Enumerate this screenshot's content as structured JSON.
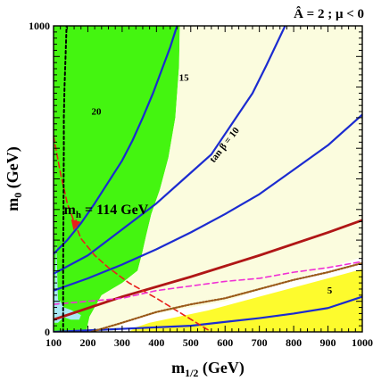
{
  "chart_data": {
    "type": "line",
    "title": "Â = 2 ; μ < 0",
    "xlabel": "m1/2 (GeV)",
    "xlabel_main": "m",
    "xlabel_sub": "1/2",
    "xlabel_unit": " (GeV)",
    "ylabel": "m0 (GeV)",
    "ylabel_main": "m",
    "ylabel_sub": "0",
    "ylabel_unit": " (GeV)",
    "xlim": [
      100,
      1000
    ],
    "ylim": [
      0,
      1000
    ],
    "xticks": [
      100,
      200,
      300,
      400,
      500,
      600,
      700,
      800,
      900,
      1000
    ],
    "yticks_labeled": [
      0,
      1000
    ],
    "yticks_minor": [
      100,
      200,
      300,
      400,
      500,
      600,
      700,
      800,
      900
    ],
    "colors": {
      "green": "#44f510",
      "cream": "#fbfcde",
      "yellow": "#fdfb2d",
      "lightblue": "#a8e8f4",
      "blue": "#1b2bd0",
      "darkred": "#b01616",
      "red": "#e8201c",
      "magenta": "#f02fd4",
      "brown": "#9a5a1a",
      "black": "#000000"
    },
    "regions": [
      {
        "name": "green",
        "polygon": [
          [
            100,
            0
          ],
          [
            100,
            1000
          ],
          [
            468,
            1000
          ],
          [
            466,
            870
          ],
          [
            455,
            700
          ],
          [
            435,
            570
          ],
          [
            410,
            465
          ],
          [
            385,
            385
          ],
          [
            370,
            315
          ],
          [
            358,
            255
          ],
          [
            345,
            200
          ],
          [
            300,
            160
          ],
          [
            240,
            120
          ],
          [
            205,
            50
          ],
          [
            195,
            0
          ]
        ]
      },
      {
        "name": "cream",
        "polygon": [
          [
            468,
            1000
          ],
          [
            1000,
            1000
          ],
          [
            1000,
            245
          ],
          [
            600,
            100
          ],
          [
            350,
            50
          ],
          [
            300,
            30
          ],
          [
            280,
            0
          ],
          [
            195,
            0
          ],
          [
            205,
            50
          ],
          [
            240,
            120
          ],
          [
            300,
            160
          ],
          [
            345,
            200
          ],
          [
            358,
            255
          ],
          [
            370,
            315
          ],
          [
            385,
            385
          ],
          [
            410,
            465
          ],
          [
            435,
            570
          ],
          [
            455,
            700
          ],
          [
            466,
            870
          ]
        ]
      },
      {
        "name": "yellow",
        "polygon": [
          [
            1000,
            0
          ],
          [
            1000,
            205
          ],
          [
            700,
            115
          ],
          [
            550,
            70
          ],
          [
            380,
            30
          ],
          [
            340,
            15
          ],
          [
            320,
            0
          ]
        ]
      },
      {
        "name": "lightblue",
        "polygon": [
          [
            102,
            105
          ],
          [
            108,
            300
          ],
          [
            113,
            105
          ],
          [
            120,
            100
          ],
          [
            130,
            80
          ],
          [
            150,
            72
          ],
          [
            180,
            55
          ],
          [
            175,
            40
          ],
          [
            150,
            40
          ],
          [
            130,
            48
          ],
          [
            113,
            30
          ],
          [
            102,
            30
          ]
        ]
      }
    ],
    "series": [
      {
        "label": "20",
        "color": "blue",
        "width": 2.2,
        "dash": "",
        "points": [
          [
            100,
            255
          ],
          [
            140,
            300
          ],
          [
            180,
            355
          ],
          [
            220,
            420
          ],
          [
            260,
            490
          ],
          [
            300,
            560
          ],
          [
            330,
            625
          ],
          [
            360,
            700
          ],
          [
            390,
            780
          ],
          [
            415,
            855
          ],
          [
            440,
            930
          ],
          [
            460,
            1000
          ]
        ]
      },
      {
        "label": "15",
        "color": "blue",
        "width": 2.2,
        "dash": "",
        "points": [
          [
            100,
            190
          ],
          [
            200,
            250
          ],
          [
            300,
            335
          ],
          [
            400,
            420
          ],
          [
            480,
            500
          ],
          [
            560,
            580
          ],
          [
            620,
            680
          ],
          [
            680,
            780
          ],
          [
            720,
            870
          ],
          [
            775,
            1000
          ]
        ]
      },
      {
        "label": "tan β = 10",
        "color": "blue",
        "width": 2.2,
        "dash": "",
        "points": [
          [
            100,
            135
          ],
          [
            200,
            175
          ],
          [
            300,
            220
          ],
          [
            400,
            270
          ],
          [
            500,
            325
          ],
          [
            600,
            385
          ],
          [
            700,
            450
          ],
          [
            800,
            530
          ],
          [
            900,
            610
          ],
          [
            970,
            680
          ],
          [
            1000,
            710
          ]
        ]
      },
      {
        "label": "5",
        "color": "blue",
        "width": 2.2,
        "dash": "",
        "points": [
          [
            100,
            0
          ],
          [
            300,
            10
          ],
          [
            500,
            20
          ],
          [
            700,
            45
          ],
          [
            800,
            60
          ],
          [
            900,
            78
          ],
          [
            1000,
            115
          ]
        ]
      },
      {
        "label": "",
        "color": "darkred",
        "width": 2.8,
        "dash": "",
        "points": [
          [
            100,
            40
          ],
          [
            300,
            115
          ],
          [
            500,
            180
          ],
          [
            700,
            250
          ],
          [
            900,
            325
          ],
          [
            1000,
            365
          ]
        ]
      },
      {
        "label": "m_h = 114 GeV",
        "color": "red",
        "width": 1.6,
        "dash": "6,4",
        "points": [
          [
            100,
            640
          ],
          [
            120,
            520
          ],
          [
            140,
            420
          ],
          [
            160,
            360
          ],
          [
            180,
            305
          ],
          [
            220,
            250
          ],
          [
            260,
            210
          ],
          [
            320,
            160
          ],
          [
            400,
            110
          ],
          [
            480,
            55
          ],
          [
            560,
            0
          ]
        ]
      },
      {
        "label": "",
        "color": "magenta",
        "width": 1.6,
        "dash": "6,4",
        "points": [
          [
            100,
            90
          ],
          [
            200,
            100
          ],
          [
            300,
            110
          ],
          [
            400,
            135
          ],
          [
            500,
            150
          ],
          [
            600,
            165
          ],
          [
            700,
            175
          ],
          [
            800,
            195
          ],
          [
            900,
            210
          ],
          [
            1000,
            230
          ]
        ]
      },
      {
        "label": "",
        "color": "brown",
        "width": 2.2,
        "dash": "1.6,1.8",
        "points": [
          [
            210,
            0
          ],
          [
            300,
            30
          ],
          [
            400,
            65
          ],
          [
            500,
            90
          ],
          [
            600,
            110
          ],
          [
            700,
            140
          ],
          [
            800,
            170
          ],
          [
            900,
            195
          ],
          [
            1000,
            225
          ]
        ]
      },
      {
        "label": "",
        "color": "black",
        "width": 2.0,
        "dash": "3,3",
        "points": [
          [
            128,
            0
          ],
          [
            128,
            200
          ],
          [
            129,
            400
          ],
          [
            130,
            600
          ],
          [
            130,
            700
          ],
          [
            132,
            800
          ],
          [
            135,
            900
          ],
          [
            138,
            1000
          ]
        ]
      }
    ],
    "annotations": [
      {
        "text": "20",
        "x": 225,
        "y": 710,
        "rotate": 0,
        "size": 11
      },
      {
        "text": "15",
        "x": 480,
        "y": 820,
        "rotate": 0,
        "size": 11
      },
      {
        "text": "tan β = 10",
        "x": 605,
        "y": 605,
        "rotate": -52,
        "size": 11
      },
      {
        "text": "5",
        "x": 905,
        "y": 125,
        "rotate": 0,
        "size": 11
      }
    ],
    "mh_label": {
      "main": "m",
      "sub": "h",
      "rest": " = 114 GeV",
      "x": 130,
      "y": 385,
      "arrow_to": [
        160,
        340
      ]
    }
  }
}
